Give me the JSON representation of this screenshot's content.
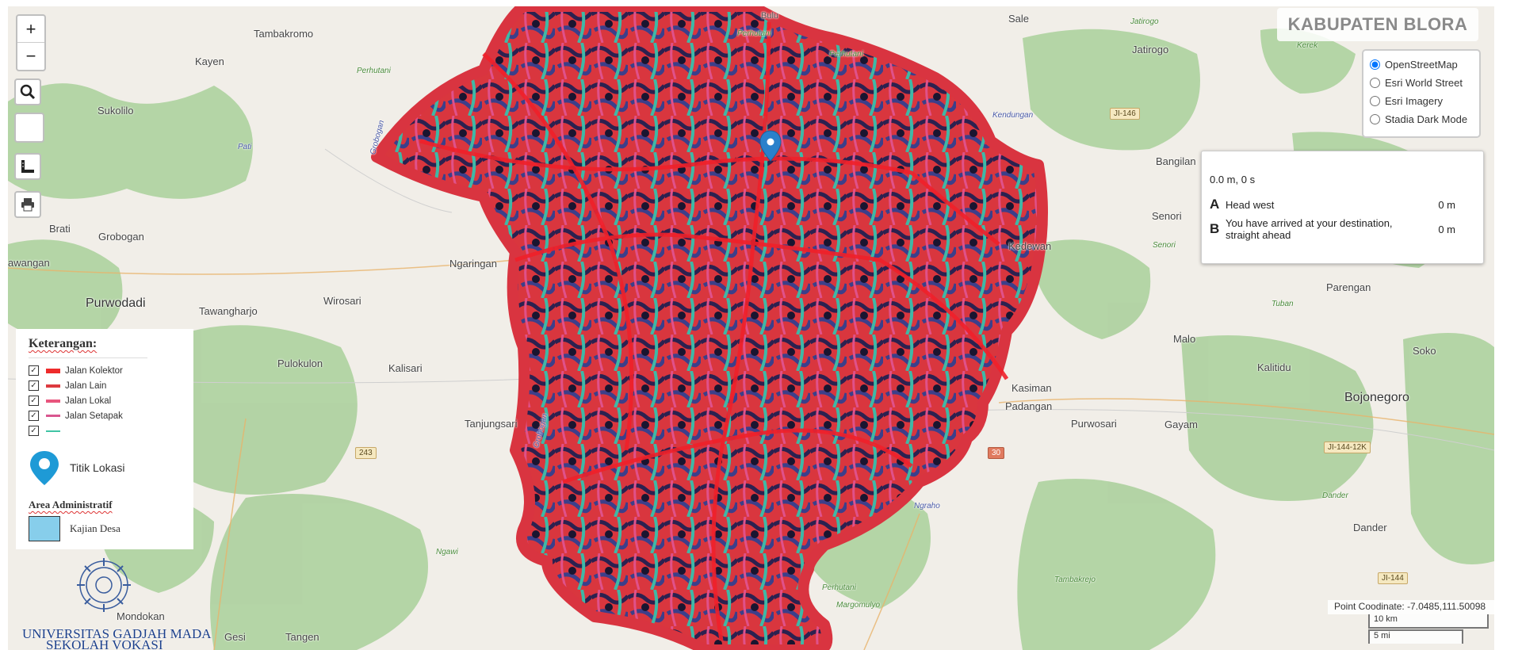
{
  "map": {
    "title": "KABUPATEN BLORA",
    "zoom_in_label": "+",
    "zoom_out_label": "−",
    "colors": {
      "road_kolektor": "#ee2b2b",
      "road_lain": "#dd3a3f",
      "road_lokal": "#e8557d",
      "road_setapak": "#d9568f",
      "road_teal": "#40c4a5",
      "kajian_desa": "#87ceeb",
      "marker": "#2a81cb"
    },
    "places": [
      {
        "name": "Tambakromo",
        "cls": "",
        "id": "p1"
      },
      {
        "name": "Bulu",
        "cls": "small",
        "id": "p2"
      },
      {
        "name": "Sale",
        "cls": "",
        "id": "p3"
      },
      {
        "name": "Jatirogo",
        "cls": "",
        "id": "p4"
      },
      {
        "name": "Kayen",
        "cls": "",
        "id": "p5"
      },
      {
        "name": "Sukolilo",
        "cls": "",
        "id": "p6"
      },
      {
        "name": "Perhutani",
        "cls": "green",
        "id": "p7"
      },
      {
        "name": "Perhutani",
        "cls": "green",
        "id": "p8"
      },
      {
        "name": "Bangilan",
        "cls": "",
        "id": "p9"
      },
      {
        "name": "Brati",
        "cls": "",
        "id": "p10"
      },
      {
        "name": "Grobogan",
        "cls": "",
        "id": "p11"
      },
      {
        "name": "Ngaringan",
        "cls": "",
        "id": "p12"
      },
      {
        "name": "Senori",
        "cls": "",
        "id": "p13"
      },
      {
        "name": "Kedewan",
        "cls": "",
        "id": "p14"
      },
      {
        "name": "Purwodadi",
        "cls": "big",
        "id": "p15"
      },
      {
        "name": "Tawangharjo",
        "cls": "",
        "id": "p16"
      },
      {
        "name": "Wirosari",
        "cls": "",
        "id": "p17"
      },
      {
        "name": "Parengan",
        "cls": "",
        "id": "p18"
      },
      {
        "name": "Malo",
        "cls": "",
        "id": "p19"
      },
      {
        "name": "Kalitidu",
        "cls": "",
        "id": "p20"
      },
      {
        "name": "Soko",
        "cls": "",
        "id": "p21"
      },
      {
        "name": "Pulokulon",
        "cls": "",
        "id": "p22"
      },
      {
        "name": "Kalisari",
        "cls": "",
        "id": "p23"
      },
      {
        "name": "Kasiman",
        "cls": "",
        "id": "p24"
      },
      {
        "name": "Padangan",
        "cls": "",
        "id": "p25"
      },
      {
        "name": "Bojonegoro",
        "cls": "big",
        "id": "p26"
      },
      {
        "name": "Tanjungsari",
        "cls": "",
        "id": "p27"
      },
      {
        "name": "Purwosari",
        "cls": "",
        "id": "p28"
      },
      {
        "name": "Gayam",
        "cls": "",
        "id": "p29"
      },
      {
        "name": "Ngraho",
        "cls": "blue",
        "id": "p30"
      },
      {
        "name": "Dander",
        "cls": "",
        "id": "p31"
      },
      {
        "name": "Perhutani",
        "cls": "green",
        "id": "p32"
      },
      {
        "name": "Margomulyo",
        "cls": "green",
        "id": "p33"
      },
      {
        "name": "Tambakrejo",
        "cls": "green",
        "id": "p34"
      },
      {
        "name": "Mondokan",
        "cls": "",
        "id": "p35"
      },
      {
        "name": "Gesi",
        "cls": "",
        "id": "p36"
      },
      {
        "name": "Tangen",
        "cls": "",
        "id": "p37"
      },
      {
        "name": "Ngawi",
        "cls": "green",
        "id": "p38"
      },
      {
        "name": "Kendungan",
        "cls": "blue",
        "id": "p39"
      },
      {
        "name": "Grobogan",
        "cls": "blue",
        "id": "p40"
      },
      {
        "name": "Pati",
        "cls": "blue",
        "id": "p41"
      },
      {
        "name": "Perhutani",
        "cls": "green",
        "id": "p42"
      },
      {
        "name": "awangan",
        "cls": "",
        "id": "p43"
      },
      {
        "name": "Jatirogo",
        "cls": "green",
        "id": "p44"
      },
      {
        "name": "Kerek",
        "cls": "green",
        "id": "p45"
      },
      {
        "name": "Tuban",
        "cls": "green",
        "id": "p46"
      },
      {
        "name": "Senori",
        "cls": "green",
        "id": "p47"
      },
      {
        "name": "Dander",
        "cls": "green",
        "id": "p48"
      },
      {
        "name": "Grobogan",
        "cls": "blue",
        "id": "p49"
      }
    ],
    "shields": [
      {
        "label": "JI-146",
        "id": "s1"
      },
      {
        "label": "243",
        "id": "s2"
      },
      {
        "label": "30",
        "id": "s3"
      },
      {
        "label": "JI-144-12K",
        "id": "s4"
      },
      {
        "label": "JI-144",
        "id": "s5"
      }
    ]
  },
  "basemap_selector": {
    "options": [
      "OpenStreetMap",
      "Esri World Street",
      "Esri Imagery",
      "Stadia Dark Mode"
    ],
    "selected": "OpenStreetMap"
  },
  "routing": {
    "summary": "0.0 m, 0 s",
    "steps": [
      {
        "marker": "A",
        "text": "Head west",
        "distance": "0 m"
      },
      {
        "marker": "B",
        "text": "You have arrived at your destination, straight ahead",
        "distance": "0 m"
      }
    ]
  },
  "legend": {
    "title": "Keterangan:",
    "roads": [
      {
        "label": "Jalan Kolektor",
        "color": "#ee2b2b"
      },
      {
        "label": "Jalan Lain",
        "color": "#dd3a3f"
      },
      {
        "label": "Jalan Lokal",
        "color": "#e8557d"
      },
      {
        "label": "Jalan Setapak",
        "color": "#d9568f"
      },
      {
        "label": "",
        "color": "#40c4a5"
      }
    ],
    "point_label": "Titik Lokasi",
    "area_title": "Area Administratif",
    "area_label": "Kajian Desa"
  },
  "branding": {
    "university": "UNIVERSITAS GADJAH MADA",
    "school": "SEKOLAH VOKASI"
  },
  "status": {
    "point_coordinate": "Point Coodinate: -7.0485,111.50098",
    "scale_metric": "10 km",
    "scale_imperial": "5 mi"
  }
}
